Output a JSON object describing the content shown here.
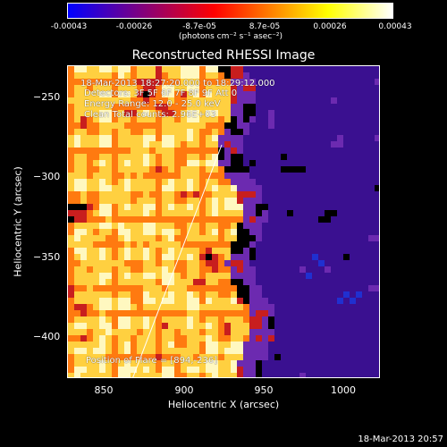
{
  "colorbar": {
    "tick_labels": [
      "-0.00043",
      "-0.00026",
      "-8.7e-05",
      "8.7e-05",
      "0.00026",
      "0.00043"
    ],
    "units_label": "(photons cm⁻² s⁻¹ asec⁻²)",
    "colors": [
      "#0000ff",
      "#ff0000",
      "#ffff00",
      "#ffffff"
    ]
  },
  "image": {
    "title": "Reconstructed RHESSI Image",
    "info_lines": [
      "18-Mar-2013 18:27:20.000 to 18:29:12.000",
      "Detectors: 3F 5F 6F 7F 8F 9F Att 0",
      "Energy Range: 12.0 - 25.0 keV",
      "Clean    Total counts: 2.96E+03"
    ],
    "position_of_flare": "Position of Flare = [894,-236]",
    "colormap": [
      "#000000",
      "#3a1090",
      "#6c2ab0",
      "#c81e1e",
      "#ff7a10",
      "#ffd040",
      "#fff8c0"
    ]
  },
  "axes": {
    "xlabel": "Heliocentric X (arcsec)",
    "ylabel": "Heliocentric Y (arcsec)",
    "xticks": [
      {
        "value": 850,
        "label": "850"
      },
      {
        "value": 900,
        "label": "900"
      },
      {
        "value": 950,
        "label": "950"
      },
      {
        "value": 1000,
        "label": "1000"
      }
    ],
    "yticks": [
      {
        "value": -250,
        "label": "−250"
      },
      {
        "value": -300,
        "label": "−300"
      },
      {
        "value": -350,
        "label": "−350"
      },
      {
        "value": -400,
        "label": "−400"
      }
    ],
    "xlim": [
      827,
      1023
    ],
    "ylim": [
      -424,
      -228
    ]
  },
  "footer": {
    "timestamp": "18-Mar-2013 20:57"
  }
}
